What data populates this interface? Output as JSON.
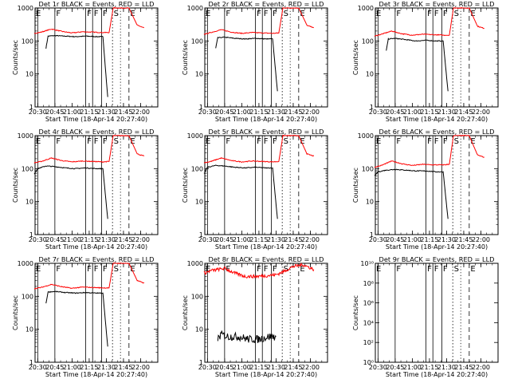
{
  "figure": {
    "ylabel": "Counts/sec",
    "xlabel": "Start Time (18-Apr-14 20:27:40)",
    "xticks": [
      "20:30",
      "20:45",
      "21:00",
      "21:15",
      "21:30",
      "21:45",
      "22:00"
    ],
    "colors": {
      "events": "#000000",
      "lld": "#ff0000"
    }
  },
  "chart_data": [
    {
      "type": "line",
      "title": "Det 1r BLACK = Events, RED = LLD",
      "xlabel": "Start Time (18-Apr-14 20:27:40)",
      "ylabel": "Counts/sec",
      "yscale": "log",
      "ylim": [
        1,
        1000
      ],
      "yticks": [
        "1",
        "10",
        "100",
        "1000"
      ],
      "xticks": [
        "20:30",
        "20:45",
        "21:00",
        "21:15",
        "21:30",
        "21:45",
        "22:00"
      ],
      "markers": [
        {
          "label": "E",
          "t": 20.5
        },
        {
          "label": "F",
          "t": 20.75
        },
        {
          "label": "F",
          "t": 21.2
        },
        {
          "label": "F",
          "t": 21.3
        },
        {
          "label": "F",
          "t": 21.43
        },
        {
          "label": "S",
          "t": 21.59
        },
        {
          "label": "E",
          "t": 21.83
        }
      ],
      "series": [
        {
          "name": "Events",
          "t": [
            20.62,
            20.65,
            20.75,
            20.9,
            21.05,
            21.2,
            21.35,
            21.45,
            21.52
          ],
          "values": [
            60,
            140,
            145,
            140,
            135,
            140,
            135,
            135,
            2
          ]
        },
        {
          "name": "LLD",
          "t": [
            20.45,
            20.55,
            20.7,
            20.85,
            21.0,
            21.15,
            21.3,
            21.45,
            21.54,
            21.6,
            21.7,
            21.83,
            21.95,
            22.05
          ],
          "values": [
            170,
            185,
            230,
            195,
            175,
            190,
            185,
            180,
            180,
            1000,
            1000,
            1000,
            300,
            250
          ]
        }
      ]
    },
    {
      "type": "line",
      "title": "Det 2r BLACK = Events, RED = LLD",
      "xlabel": "Start Time (18-Apr-14 20:27:40)",
      "ylabel": "Counts/sec",
      "yscale": "log",
      "ylim": [
        1,
        1000
      ],
      "yticks": [
        "1",
        "10",
        "100",
        "1000"
      ],
      "xticks": [
        "20:30",
        "20:45",
        "21:00",
        "21:15",
        "21:30",
        "21:45",
        "22:00"
      ],
      "markers": [
        {
          "label": "E",
          "t": 20.5
        },
        {
          "label": "F",
          "t": 20.75
        },
        {
          "label": "F",
          "t": 21.2
        },
        {
          "label": "F",
          "t": 21.3
        },
        {
          "label": "F",
          "t": 21.43
        },
        {
          "label": "S",
          "t": 21.59
        },
        {
          "label": "E",
          "t": 21.83
        }
      ],
      "series": [
        {
          "name": "Events",
          "t": [
            20.62,
            20.65,
            20.75,
            20.9,
            21.05,
            21.2,
            21.35,
            21.45,
            21.52
          ],
          "values": [
            60,
            125,
            130,
            120,
            115,
            120,
            115,
            115,
            3
          ]
        },
        {
          "name": "LLD",
          "t": [
            20.45,
            20.55,
            20.7,
            20.85,
            21.0,
            21.15,
            21.3,
            21.45,
            21.54,
            21.6,
            21.7,
            21.83,
            21.95,
            22.05
          ],
          "values": [
            160,
            180,
            220,
            185,
            170,
            180,
            175,
            170,
            175,
            1000,
            1000,
            1000,
            300,
            250
          ]
        }
      ]
    },
    {
      "type": "line",
      "title": "Det 3r BLACK = Events, RED = LLD",
      "xlabel": "Start Time (18-Apr-14 20:27:40)",
      "ylabel": "Counts/sec",
      "yscale": "log",
      "ylim": [
        1,
        1000
      ],
      "yticks": [
        "1",
        "10",
        "100",
        "1000"
      ],
      "xticks": [
        "20:30",
        "20:45",
        "21:00",
        "21:15",
        "21:30",
        "21:45",
        "22:00"
      ],
      "markers": [
        {
          "label": "E",
          "t": 20.5
        },
        {
          "label": "F",
          "t": 20.75
        },
        {
          "label": "F",
          "t": 21.2
        },
        {
          "label": "F",
          "t": 21.3
        },
        {
          "label": "F",
          "t": 21.43
        },
        {
          "label": "S",
          "t": 21.59
        },
        {
          "label": "E",
          "t": 21.83
        }
      ],
      "series": [
        {
          "name": "Events",
          "t": [
            20.62,
            20.65,
            20.75,
            20.9,
            21.05,
            21.2,
            21.35,
            21.45,
            21.52
          ],
          "values": [
            50,
            115,
            120,
            110,
            100,
            105,
            100,
            100,
            3
          ]
        },
        {
          "name": "LLD",
          "t": [
            20.45,
            20.55,
            20.7,
            20.85,
            21.0,
            21.15,
            21.3,
            21.45,
            21.54,
            21.6,
            21.7,
            21.83,
            21.95,
            22.05
          ],
          "values": [
            140,
            160,
            200,
            165,
            150,
            160,
            155,
            150,
            150,
            1000,
            1000,
            1000,
            280,
            240
          ]
        }
      ]
    },
    {
      "type": "line",
      "title": "Det 4r BLACK = Events, RED = LLD",
      "xlabel": "Start Time (18-Apr-14 20:27:40)",
      "ylabel": "Counts/sec",
      "yscale": "log",
      "ylim": [
        1,
        1000
      ],
      "yticks": [
        "1",
        "10",
        "100",
        "1000"
      ],
      "xticks": [
        "20:30",
        "20:45",
        "21:00",
        "21:15",
        "21:30",
        "21:45",
        "22:00"
      ],
      "markers": [
        {
          "label": "E",
          "t": 20.5
        },
        {
          "label": "F",
          "t": 20.75
        },
        {
          "label": "F",
          "t": 21.2
        },
        {
          "label": "F",
          "t": 21.3
        },
        {
          "label": "F",
          "t": 21.43
        },
        {
          "label": "S",
          "t": 21.59
        },
        {
          "label": "E",
          "t": 21.83
        }
      ],
      "series": [
        {
          "name": "Events",
          "t": [
            20.45,
            20.5,
            20.62,
            20.75,
            20.9,
            21.05,
            21.2,
            21.35,
            21.45,
            21.52
          ],
          "values": [
            70,
            100,
            120,
            115,
            105,
            100,
            105,
            100,
            100,
            3
          ]
        },
        {
          "name": "LLD",
          "t": [
            20.45,
            20.55,
            20.7,
            20.85,
            21.0,
            21.15,
            21.3,
            21.45,
            21.54,
            21.6,
            21.7,
            21.83,
            21.95,
            22.05
          ],
          "values": [
            150,
            165,
            210,
            175,
            160,
            170,
            165,
            160,
            165,
            1000,
            1000,
            1000,
            280,
            240
          ]
        }
      ]
    },
    {
      "type": "line",
      "title": "Det 5r BLACK = Events, RED = LLD",
      "xlabel": "Start Time (18-Apr-14 20:27:40)",
      "ylabel": "Counts/sec",
      "yscale": "log",
      "ylim": [
        1,
        1000
      ],
      "yticks": [
        "1",
        "10",
        "100",
        "1000"
      ],
      "xticks": [
        "20:30",
        "20:45",
        "21:00",
        "21:15",
        "21:30",
        "21:45",
        "22:00"
      ],
      "markers": [
        {
          "label": "E",
          "t": 20.5
        },
        {
          "label": "F",
          "t": 20.75
        },
        {
          "label": "F",
          "t": 21.2
        },
        {
          "label": "F",
          "t": 21.3
        },
        {
          "label": "F",
          "t": 21.43
        },
        {
          "label": "S",
          "t": 21.59
        },
        {
          "label": "E",
          "t": 21.83
        }
      ],
      "series": [
        {
          "name": "Events",
          "t": [
            20.45,
            20.5,
            20.62,
            20.75,
            20.9,
            21.05,
            21.2,
            21.35,
            21.45,
            21.52
          ],
          "values": [
            70,
            110,
            125,
            120,
            110,
            105,
            110,
            105,
            105,
            3
          ]
        },
        {
          "name": "LLD",
          "t": [
            20.45,
            20.55,
            20.7,
            20.85,
            21.0,
            21.15,
            21.3,
            21.45,
            21.54,
            21.6,
            21.7,
            21.83,
            21.95,
            22.05
          ],
          "values": [
            150,
            165,
            210,
            175,
            160,
            170,
            165,
            160,
            165,
            1000,
            1000,
            1000,
            280,
            240
          ]
        }
      ]
    },
    {
      "type": "line",
      "title": "Det 6r BLACK = Events, RED = LLD",
      "xlabel": "Start Time (18-Apr-14 20:27:40)",
      "ylabel": "Counts/sec",
      "yscale": "log",
      "ylim": [
        1,
        1000
      ],
      "yticks": [
        "1",
        "10",
        "100",
        "1000"
      ],
      "xticks": [
        "20:30",
        "20:45",
        "21:00",
        "21:15",
        "21:30",
        "21:45",
        "22:00"
      ],
      "markers": [
        {
          "label": "E",
          "t": 20.5
        },
        {
          "label": "F",
          "t": 20.75
        },
        {
          "label": "F",
          "t": 21.2
        },
        {
          "label": "F",
          "t": 21.3
        },
        {
          "label": "F",
          "t": 21.43
        },
        {
          "label": "S",
          "t": 21.59
        },
        {
          "label": "E",
          "t": 21.83
        }
      ],
      "series": [
        {
          "name": "Events",
          "t": [
            20.45,
            20.5,
            20.62,
            20.75,
            20.9,
            21.05,
            21.2,
            21.35,
            21.45,
            21.52
          ],
          "values": [
            60,
            80,
            90,
            95,
            90,
            85,
            85,
            80,
            80,
            3
          ]
        },
        {
          "name": "LLD",
          "t": [
            20.45,
            20.55,
            20.7,
            20.85,
            21.0,
            21.15,
            21.3,
            21.45,
            21.54,
            21.6,
            21.7,
            21.83,
            21.95,
            22.05
          ],
          "values": [
            110,
            125,
            170,
            140,
            125,
            135,
            130,
            130,
            135,
            1000,
            1000,
            1000,
            260,
            220
          ]
        }
      ]
    },
    {
      "type": "line",
      "title": "Det 7r BLACK = Events, RED = LLD",
      "xlabel": "Start Time (18-Apr-14 20:27:40)",
      "ylabel": "Counts/sec",
      "yscale": "log",
      "ylim": [
        1,
        1000
      ],
      "yticks": [
        "1",
        "10",
        "100",
        "1000"
      ],
      "xticks": [
        "20:30",
        "20:45",
        "21:00",
        "21:15",
        "21:30",
        "21:45",
        "22:00"
      ],
      "markers": [
        {
          "label": "E",
          "t": 20.5
        },
        {
          "label": "F",
          "t": 20.75
        },
        {
          "label": "F",
          "t": 21.2
        },
        {
          "label": "F",
          "t": 21.3
        },
        {
          "label": "F",
          "t": 21.43
        },
        {
          "label": "S",
          "t": 21.59
        },
        {
          "label": "E",
          "t": 21.83
        }
      ],
      "series": [
        {
          "name": "Events",
          "t": [
            20.62,
            20.65,
            20.75,
            20.9,
            21.05,
            21.2,
            21.35,
            21.45,
            21.52
          ],
          "values": [
            60,
            135,
            140,
            130,
            125,
            130,
            125,
            125,
            3
          ]
        },
        {
          "name": "LLD",
          "t": [
            20.45,
            20.55,
            20.7,
            20.85,
            21.0,
            21.15,
            21.3,
            21.45,
            21.54,
            21.6,
            21.7,
            21.83,
            21.95,
            22.05
          ],
          "values": [
            170,
            185,
            230,
            195,
            175,
            190,
            185,
            180,
            180,
            1000,
            1000,
            1000,
            300,
            250
          ]
        }
      ]
    },
    {
      "type": "line",
      "title": "Det 8r BLACK = Events, RED = LLD",
      "xlabel": "Start Time (18-Apr-14 20:27:40)",
      "ylabel": "Counts/sec",
      "yscale": "log",
      "ylim": [
        1,
        1000
      ],
      "yticks": [
        "1",
        "10",
        "100",
        "1000"
      ],
      "xticks": [
        "20:30",
        "20:45",
        "21:00",
        "21:15",
        "21:30",
        "21:45",
        "22:00"
      ],
      "markers": [
        {
          "label": "E",
          "t": 20.5
        },
        {
          "label": "F",
          "t": 20.75
        },
        {
          "label": "F",
          "t": 21.2
        },
        {
          "label": "F",
          "t": 21.3
        },
        {
          "label": "F",
          "t": 21.43
        },
        {
          "label": "S",
          "t": 21.59
        },
        {
          "label": "E",
          "t": 21.83
        }
      ],
      "series": [
        {
          "name": "Events",
          "t": [
            20.65,
            20.7,
            20.8,
            20.95,
            21.1,
            21.25,
            21.4,
            21.5
          ],
          "values": [
            5,
            7,
            6,
            6,
            5,
            5,
            6,
            6
          ]
        },
        {
          "name": "LLD",
          "t": [
            20.45,
            20.55,
            20.75,
            20.9,
            21.05,
            21.2,
            21.35,
            21.5,
            21.6,
            21.75,
            21.9,
            22.05
          ],
          "values": [
            500,
            600,
            700,
            500,
            400,
            400,
            420,
            450,
            550,
            800,
            900,
            650
          ]
        }
      ]
    },
    {
      "type": "line",
      "title": "Det 9r BLACK = Events, RED = LLD",
      "xlabel": "Start Time (18-Apr-14 20:27:40)",
      "ylabel": "Counts/sec",
      "yscale": "log",
      "ylim": [
        1,
        10000000000.0
      ],
      "yticks": [
        "10⁰",
        "10²",
        "10⁴",
        "10⁶",
        "10⁸",
        "10¹⁰"
      ],
      "xticks": [
        "20:30",
        "20:45",
        "21:00",
        "21:15",
        "21:30",
        "21:45",
        "22:00"
      ],
      "markers": [
        {
          "label": "E",
          "t": 20.5
        },
        {
          "label": "F",
          "t": 20.75
        },
        {
          "label": "F",
          "t": 21.2
        },
        {
          "label": "F",
          "t": 21.3
        },
        {
          "label": "F",
          "t": 21.43
        },
        {
          "label": "S",
          "t": 21.59
        },
        {
          "label": "E",
          "t": 21.83
        }
      ],
      "series": []
    }
  ]
}
